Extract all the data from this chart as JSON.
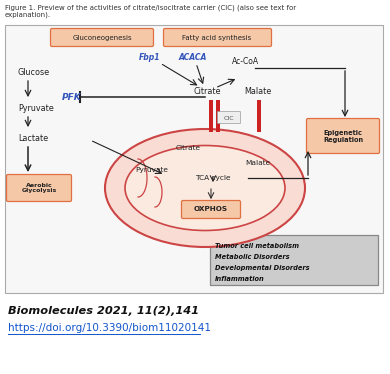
{
  "fig_title": "Figure 1. Preview of the activities of citrate/isocitrate carrier (CIC) (also see text for\nexplanation).",
  "citation_line1": "Biomolecules 2021, 11(2),141",
  "citation_url": "https://doi.org/10.3390/biom11020141",
  "bg_color": "#ffffff",
  "orange_box_color": "#e07040",
  "orange_fill": "#f5c8a8",
  "red_color": "#cc2222",
  "blue_color": "#3355bb",
  "dark_color": "#222222",
  "gray_box_color": "#cccccc",
  "mito_fill": "#f9ddd5",
  "mito_edge": "#cc4444",
  "arrow_color": "#222222"
}
